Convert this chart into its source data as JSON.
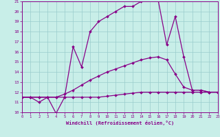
{
  "xlabel": "Windchill (Refroidissement éolien,°C)",
  "bg_color": "#c8eee8",
  "grid_color": "#99cccc",
  "line_color": "#880088",
  "xmin": 0,
  "xmax": 23,
  "ymin": 10,
  "ymax": 21,
  "yticks": [
    10,
    11,
    12,
    13,
    14,
    15,
    16,
    17,
    18,
    19,
    20,
    21
  ],
  "xticks": [
    0,
    1,
    2,
    3,
    4,
    5,
    6,
    7,
    8,
    9,
    10,
    11,
    12,
    13,
    14,
    15,
    16,
    17,
    18,
    19,
    20,
    21,
    22,
    23
  ],
  "curve1_x": [
    0,
    1,
    2,
    3,
    4,
    5,
    6,
    7,
    8,
    9,
    10,
    11,
    12,
    13,
    14,
    15,
    16,
    17,
    18,
    19,
    20,
    21,
    22,
    23
  ],
  "curve1_y": [
    11.5,
    11.5,
    11.0,
    11.5,
    9.9,
    11.5,
    16.5,
    14.5,
    18.0,
    19.0,
    19.5,
    20.0,
    20.5,
    20.5,
    21.0,
    21.2,
    21.1,
    16.7,
    19.5,
    15.5,
    12.2,
    12.2,
    12.0,
    12.0
  ],
  "curve2_x": [
    0,
    1,
    2,
    3,
    4,
    5,
    6,
    7,
    8,
    9,
    10,
    11,
    12,
    13,
    14,
    15,
    16,
    17,
    18,
    19,
    20,
    21,
    22,
    23
  ],
  "curve2_y": [
    11.5,
    11.5,
    11.5,
    11.5,
    11.5,
    11.8,
    12.2,
    12.7,
    13.2,
    13.6,
    14.0,
    14.3,
    14.6,
    14.9,
    15.2,
    15.4,
    15.5,
    15.2,
    13.8,
    12.5,
    12.2,
    12.2,
    12.0,
    12.0
  ],
  "curve3_x": [
    0,
    1,
    2,
    3,
    4,
    5,
    6,
    7,
    8,
    9,
    10,
    11,
    12,
    13,
    14,
    15,
    16,
    17,
    18,
    19,
    20,
    21,
    22,
    23
  ],
  "curve3_y": [
    11.5,
    11.5,
    11.5,
    11.5,
    11.5,
    11.5,
    11.5,
    11.5,
    11.5,
    11.5,
    11.6,
    11.7,
    11.8,
    11.9,
    12.0,
    12.0,
    12.0,
    12.0,
    12.0,
    12.0,
    12.0,
    12.0,
    12.0,
    12.0
  ]
}
